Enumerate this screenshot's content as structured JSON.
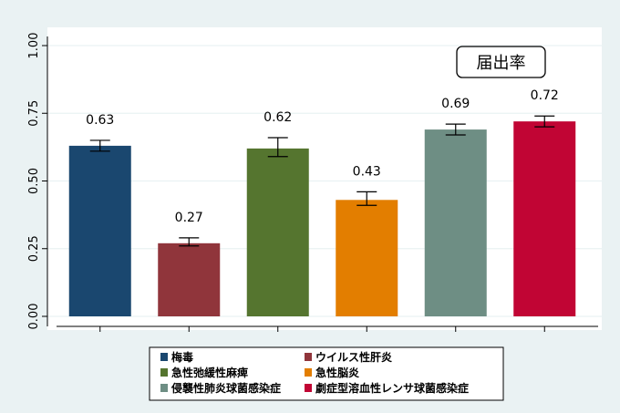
{
  "chart_data": {
    "type": "bar",
    "annotation": "届出率",
    "ylim": [
      0,
      1
    ],
    "yticks": [
      "0.00",
      "0.25",
      "0.50",
      "0.75",
      "1.00"
    ],
    "grid": true,
    "legend_position": "bottom",
    "series": [
      {
        "name": "梅毒",
        "value": 0.63,
        "label": "0.63",
        "ci": [
          0.61,
          0.65
        ],
        "color": "#1a476f"
      },
      {
        "name": "ウイルス性肝炎",
        "value": 0.27,
        "label": "0.27",
        "ci": [
          0.26,
          0.29
        ],
        "color": "#90353b"
      },
      {
        "name": "急性弛緩性麻痺",
        "value": 0.62,
        "label": "0.62",
        "ci": [
          0.59,
          0.66
        ],
        "color": "#55752f"
      },
      {
        "name": "急性脳炎",
        "value": 0.43,
        "label": "0.43",
        "ci": [
          0.41,
          0.46
        ],
        "color": "#e37e00"
      },
      {
        "name": "侵襲性肺炎球菌感染症",
        "value": 0.69,
        "label": "0.69",
        "ci": [
          0.67,
          0.71
        ],
        "color": "#6e8e84"
      },
      {
        "name": "劇症型溶血性レンサ球菌感染症",
        "value": 0.72,
        "label": "0.72",
        "ci": [
          0.7,
          0.74
        ],
        "color": "#c10534"
      }
    ]
  }
}
